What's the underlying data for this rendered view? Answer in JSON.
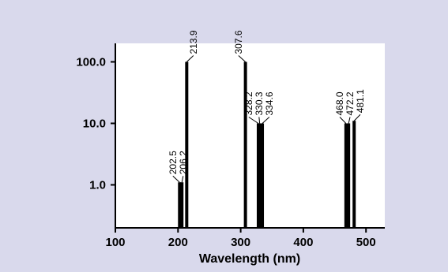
{
  "chart_data": {
    "type": "bar",
    "xlabel": "Wavelength (nm)",
    "ylabel": "",
    "xlim": [
      100,
      530
    ],
    "ylim": [
      0.2,
      200
    ],
    "y_scale": "log",
    "x_ticks": [
      "100",
      "200",
      "300",
      "400",
      "500"
    ],
    "y_ticks": [
      "1.0",
      "10.0",
      "100.0"
    ],
    "grid": false,
    "bar_color": "#000000",
    "background": "#d9d9ec",
    "lines": [
      {
        "label": "202.5",
        "x": 202.5,
        "y": 1.1
      },
      {
        "label": "206.2",
        "x": 206.2,
        "y": 1.1
      },
      {
        "label": "213.9",
        "x": 213.9,
        "y": 100
      },
      {
        "label": "307.6",
        "x": 307.6,
        "y": 100
      },
      {
        "label": "328.2",
        "x": 328.2,
        "y": 10
      },
      {
        "label": "330.3",
        "x": 330.3,
        "y": 10
      },
      {
        "label": "334.6",
        "x": 334.6,
        "y": 10
      },
      {
        "label": "468.0",
        "x": 468.0,
        "y": 10
      },
      {
        "label": "472.2",
        "x": 472.2,
        "y": 10
      },
      {
        "label": "481.1",
        "x": 481.1,
        "y": 11
      }
    ]
  }
}
